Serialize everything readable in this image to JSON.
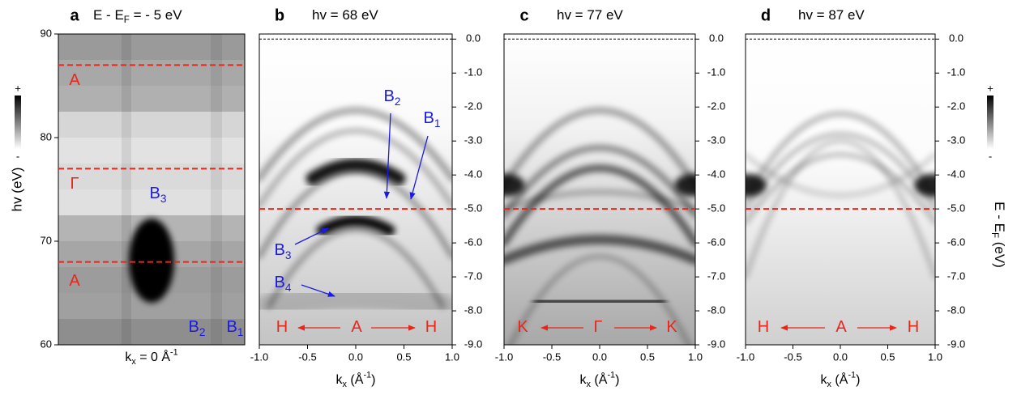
{
  "panels": [
    {
      "label": "a",
      "title": [
        {
          "text": "E - E"
        },
        {
          "sub": "F"
        },
        {
          "text": " = - 5 eV"
        }
      ],
      "ylabel": "hv (eV)",
      "xlabel": [
        {
          "text": "k"
        },
        {
          "sub": "x"
        },
        {
          "text": " = 0 Å"
        },
        {
          "sup": "-1"
        }
      ],
      "ylim": [
        60,
        90
      ],
      "yticks": [
        60,
        70,
        80,
        90
      ],
      "cuts": [
        87,
        77,
        68
      ],
      "colorbar": {
        "max": "+",
        "min": "-"
      },
      "annotations": [
        {
          "text": [
            {
              "text": "A"
            }
          ],
          "color": "#e8261c"
        },
        {
          "text": [
            {
              "text": "Γ"
            }
          ],
          "color": "#e8261c"
        },
        {
          "text": [
            {
              "text": "B"
            },
            {
              "sub": "3"
            }
          ],
          "color": "#1a1ae6"
        },
        {
          "text": [
            {
              "text": "A"
            }
          ],
          "color": "#e8261c"
        },
        {
          "text": [
            {
              "text": "B"
            },
            {
              "sub": "2"
            }
          ],
          "color": "#1a1ae6"
        },
        {
          "text": [
            {
              "text": "B"
            },
            {
              "sub": "1"
            }
          ],
          "color": "#1a1ae6"
        }
      ]
    },
    {
      "label": "b",
      "title": [
        {
          "text": "hv = 68 eV"
        }
      ],
      "xlabel": [
        {
          "text": "k"
        },
        {
          "sub": "x"
        },
        {
          "text": " (Å"
        },
        {
          "sup": "-1"
        },
        {
          "text": ")"
        }
      ],
      "xlim": [
        -1.0,
        1.0
      ],
      "xticks": [
        {
          "value": -1.0,
          "label": "-1.0"
        },
        {
          "value": -0.5,
          "label": "-0.5"
        },
        {
          "value": 0,
          "label": "0.0"
        },
        {
          "value": 0.5,
          "label": "0.5"
        },
        {
          "value": 1.0,
          "label": "1.0"
        }
      ],
      "ylim": [
        -9.0,
        0.15
      ],
      "yticks": [
        {
          "value": 0,
          "label": "0.0"
        },
        {
          "value": -1.0,
          "label": "-1.0"
        },
        {
          "value": -2.0,
          "label": "-2.0"
        },
        {
          "value": -3.0,
          "label": "-3.0"
        },
        {
          "value": -4.0,
          "label": "-4.0"
        },
        {
          "value": -5.0,
          "label": "-5.0"
        },
        {
          "value": -6.0,
          "label": "-6.0"
        },
        {
          "value": -7.0,
          "label": "-7.0"
        },
        {
          "value": -8.0,
          "label": "-8.0"
        },
        {
          "value": -9.0,
          "label": "-9.0"
        }
      ],
      "reference_line": 0,
      "cuts": [
        -5.0
      ],
      "annotations": [
        {
          "text": [
            {
              "text": "B"
            },
            {
              "sub": "2"
            }
          ],
          "color": "#1a1ae6"
        },
        {
          "text": [
            {
              "text": "B"
            },
            {
              "sub": "1"
            }
          ],
          "color": "#1a1ae6"
        },
        {
          "text": [
            {
              "text": "B"
            },
            {
              "sub": "3"
            }
          ],
          "color": "#1a1ae6"
        },
        {
          "text": [
            {
              "text": "B"
            },
            {
              "sub": "4"
            }
          ],
          "color": "#1a1ae6"
        },
        {
          "text": [
            {
              "text": "H"
            }
          ],
          "color": "#e8261c"
        },
        {
          "text": [
            {
              "text": "A"
            }
          ],
          "color": "#e8261c"
        },
        {
          "text": [
            {
              "text": "H"
            }
          ],
          "color": "#e8261c"
        }
      ]
    },
    {
      "label": "c",
      "title": [
        {
          "text": "hv = 77 eV"
        }
      ],
      "xlabel": [
        {
          "text": "k"
        },
        {
          "sub": "x"
        },
        {
          "text": " (Å"
        },
        {
          "sup": "-1"
        },
        {
          "text": ")"
        }
      ],
      "xlim": [
        -1.0,
        1.0
      ],
      "xticks": [
        {
          "value": -1.0,
          "label": "-1.0"
        },
        {
          "value": -0.5,
          "label": "-0.5"
        },
        {
          "value": 0,
          "label": "0.0"
        },
        {
          "value": 0.5,
          "label": "0.5"
        },
        {
          "value": 1.0,
          "label": "1.0"
        }
      ],
      "ylim": [
        -9.0,
        0.15
      ],
      "yticks": [
        {
          "value": 0,
          "label": "0.0"
        },
        {
          "value": -1.0,
          "label": "-1.0"
        },
        {
          "value": -2.0,
          "label": "-2.0"
        },
        {
          "value": -3.0,
          "label": "-3.0"
        },
        {
          "value": -4.0,
          "label": "-4.0"
        },
        {
          "value": -5.0,
          "label": "-5.0"
        },
        {
          "value": -6.0,
          "label": "-6.0"
        },
        {
          "value": -7.0,
          "label": "-7.0"
        },
        {
          "value": -8.0,
          "label": "-8.0"
        },
        {
          "value": -9.0,
          "label": "-9.0"
        }
      ],
      "reference_line": 0,
      "cuts": [
        -5.0
      ],
      "annotations": [
        {
          "text": [
            {
              "text": "K"
            }
          ],
          "color": "#e8261c"
        },
        {
          "text": [
            {
              "text": "Γ"
            }
          ],
          "color": "#e8261c"
        },
        {
          "text": [
            {
              "text": "K"
            }
          ],
          "color": "#e8261c"
        }
      ]
    },
    {
      "label": "d",
      "title": [
        {
          "text": "hv = 87 eV"
        }
      ],
      "xlabel": [
        {
          "text": "k"
        },
        {
          "sub": "x"
        },
        {
          "text": " (Å"
        },
        {
          "sup": "-1"
        },
        {
          "text": ")"
        }
      ],
      "xlim": [
        -1.0,
        1.0
      ],
      "xticks": [
        {
          "value": -1.0,
          "label": "-1.0"
        },
        {
          "value": -0.5,
          "label": "-0.5"
        },
        {
          "value": 0,
          "label": "0.0"
        },
        {
          "value": 0.5,
          "label": "0.5"
        },
        {
          "value": 1.0,
          "label": "1.0"
        }
      ],
      "ylim": [
        -9.0,
        0.15
      ],
      "yticks": [
        {
          "value": 0,
          "label": "0.0"
        },
        {
          "value": -1.0,
          "label": "-1.0"
        },
        {
          "value": -2.0,
          "label": "-2.0"
        },
        {
          "value": -3.0,
          "label": "-3.0"
        },
        {
          "value": -4.0,
          "label": "-4.0"
        },
        {
          "value": -5.0,
          "label": "-5.0"
        },
        {
          "value": -6.0,
          "label": "-6.0"
        },
        {
          "value": -7.0,
          "label": "-7.0"
        },
        {
          "value": -8.0,
          "label": "-8.0"
        },
        {
          "value": -9.0,
          "label": "-9.0"
        }
      ],
      "reference_line": 0,
      "cuts": [
        -5.0
      ],
      "annotations": [
        {
          "text": [
            {
              "text": "H"
            }
          ],
          "color": "#e8261c"
        },
        {
          "text": [
            {
              "text": "A"
            }
          ],
          "color": "#e8261c"
        },
        {
          "text": [
            {
              "text": "H"
            }
          ],
          "color": "#e8261c"
        }
      ]
    }
  ],
  "energy_axis": {
    "label": [
      {
        "text": "E - E"
      },
      {
        "sub": "F"
      },
      {
        "text": " (eV)"
      }
    ],
    "colorbar": {
      "max": "+",
      "min": "-"
    }
  }
}
